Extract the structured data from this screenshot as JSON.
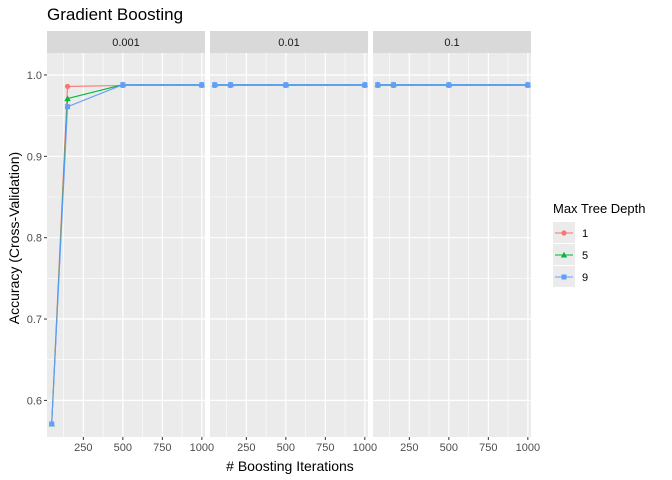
{
  "chart_data": {
    "type": "line",
    "title": "Gradient Boosting",
    "xlabel": "# Boosting Iterations",
    "ylabel": "Accuracy (Cross-Validation)",
    "facets": [
      "0.001",
      "0.01",
      "0.1"
    ],
    "x": [
      50,
      150,
      500,
      1000
    ],
    "xlim": [
      20,
      1020
    ],
    "ylim": [
      0.555,
      1.027
    ],
    "xticks": [
      250,
      500,
      750,
      1000
    ],
    "xtick_labels": [
      "250",
      "500",
      "750",
      "1000"
    ],
    "yticks": [
      0.6,
      0.7,
      0.8,
      0.9,
      1.0
    ],
    "ytick_labels": [
      "0.6",
      "0.7",
      "0.8",
      "0.9",
      "1.0"
    ],
    "legend": {
      "title": "Max Tree Depth",
      "placement": "right",
      "entries": [
        "1",
        "5",
        "9"
      ]
    },
    "series": [
      {
        "name": "1",
        "color": "#F8766D",
        "marker": "circle",
        "panels": [
          [
            0.571,
            0.986,
            0.987,
            0.987
          ],
          [
            0.987,
            0.987,
            0.987,
            0.987
          ],
          [
            0.987,
            0.987,
            0.987,
            0.987
          ]
        ]
      },
      {
        "name": "5",
        "color": "#00BA38",
        "marker": "triangle",
        "panels": [
          [
            0.571,
            0.971,
            0.988,
            0.988
          ],
          [
            0.988,
            0.988,
            0.988,
            0.988
          ],
          [
            0.988,
            0.988,
            0.988,
            0.988
          ]
        ]
      },
      {
        "name": "9",
        "color": "#619CFF",
        "marker": "square",
        "panels": [
          [
            0.571,
            0.961,
            0.988,
            0.988
          ],
          [
            0.988,
            0.988,
            0.988,
            0.988
          ],
          [
            0.988,
            0.988,
            0.988,
            0.988
          ]
        ]
      }
    ],
    "grid": true
  }
}
